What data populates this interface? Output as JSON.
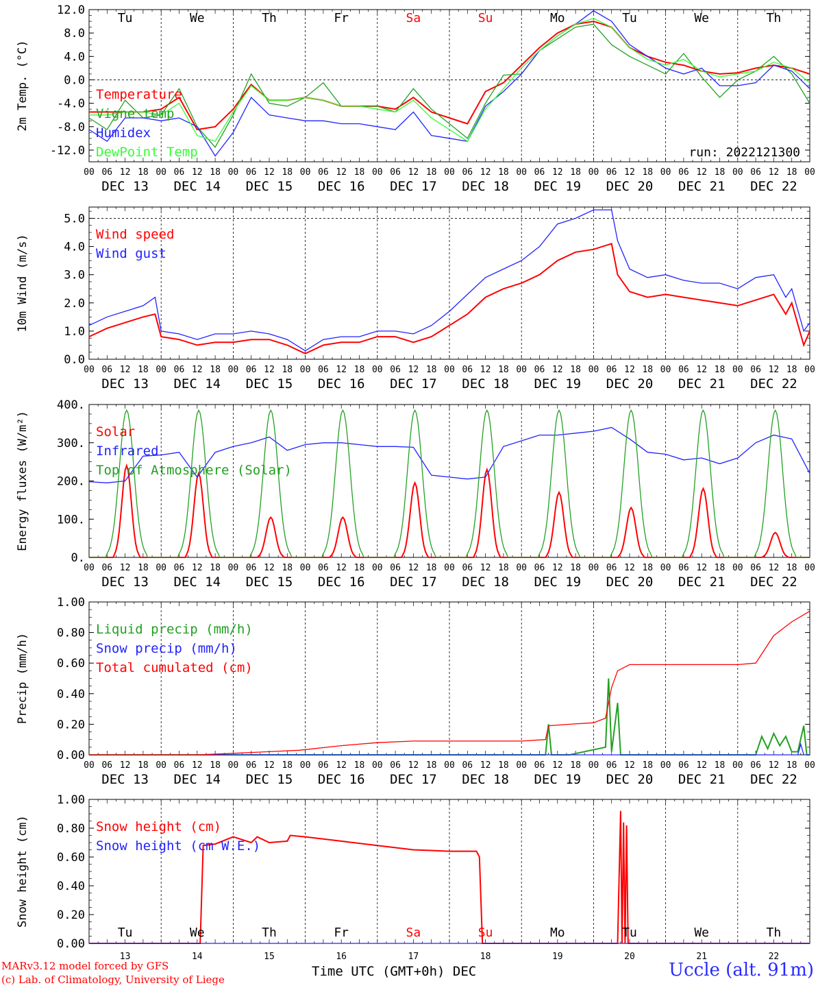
{
  "chart_data": [
    {
      "type": "line",
      "ylabel": "2m Temp. (°C)",
      "ylim": [
        -14,
        12
      ],
      "yticks": [
        "12.0",
        "8.0",
        "4.0",
        "0.0",
        "-4.0",
        "-8.0",
        "-12.0"
      ],
      "ytick_values": [
        12,
        8,
        4,
        0,
        -4,
        -8,
        -12
      ],
      "zero_line": 0,
      "annotation": "run: 2022121300",
      "series": [
        {
          "name": "Temperature",
          "color": "#ff0000",
          "x": [
            0,
            6,
            12,
            18,
            24,
            30,
            36,
            42,
            48,
            54,
            60,
            66,
            72,
            78,
            84,
            90,
            96,
            102,
            108,
            114,
            120,
            126,
            132,
            138,
            144,
            150,
            156,
            162,
            168,
            174,
            180,
            186,
            192,
            198,
            204,
            210,
            216,
            222,
            228,
            234,
            240
          ],
          "values": [
            -5.5,
            -5.5,
            -5.5,
            -5.5,
            -5.0,
            -3.0,
            -8.5,
            -8.0,
            -5.0,
            -0.8,
            -3.5,
            -3.5,
            -3.0,
            -3.5,
            -4.5,
            -4.5,
            -4.5,
            -5.0,
            -3.0,
            -5.5,
            -6.5,
            -7.5,
            -2.0,
            -0.5,
            2.5,
            5.5,
            8.0,
            9.5,
            10.0,
            9.0,
            5.5,
            4.0,
            3.0,
            2.5,
            1.5,
            1.0,
            1.2,
            2.0,
            2.5,
            2.0,
            1.0
          ]
        },
        {
          "name": "Vigne temp",
          "color": "#22a022",
          "x": [
            0,
            6,
            12,
            18,
            24,
            30,
            36,
            42,
            48,
            54,
            60,
            66,
            72,
            78,
            84,
            90,
            96,
            102,
            108,
            114,
            120,
            126,
            132,
            138,
            144,
            150,
            156,
            162,
            168,
            174,
            180,
            186,
            192,
            198,
            204,
            210,
            216,
            222,
            228,
            234,
            240
          ],
          "values": [
            -6.5,
            -8.5,
            -3.5,
            -6.5,
            -6.0,
            -1.5,
            -8.0,
            -11.5,
            -6.0,
            1.0,
            -4.0,
            -4.5,
            -3.0,
            -0.5,
            -4.5,
            -4.5,
            -4.5,
            -5.5,
            -1.5,
            -5.0,
            -7.5,
            -10.0,
            -4.0,
            0.8,
            1.0,
            5.0,
            7.0,
            9.0,
            9.5,
            6.0,
            4.0,
            2.5,
            1.0,
            4.5,
            0.5,
            -3.0,
            0.0,
            1.5,
            4.0,
            1.0,
            -4.0
          ]
        },
        {
          "name": "Humidex",
          "color": "#2222ff",
          "x": [
            0,
            6,
            12,
            18,
            24,
            30,
            36,
            42,
            48,
            54,
            60,
            66,
            72,
            78,
            84,
            90,
            96,
            102,
            108,
            114,
            120,
            126,
            132,
            138,
            144,
            150,
            156,
            162,
            168,
            174,
            180,
            186,
            192,
            198,
            204,
            210,
            216,
            222,
            228,
            234,
            240
          ],
          "values": [
            -8.5,
            -10.5,
            -6.5,
            -6.5,
            -7.0,
            -6.5,
            -8.0,
            -13.0,
            -9.0,
            -3.0,
            -6.0,
            -6.5,
            -7.0,
            -7.0,
            -7.5,
            -7.5,
            -8.0,
            -8.5,
            -5.5,
            -9.5,
            -10.0,
            -10.5,
            -4.5,
            -2.0,
            1.0,
            5.0,
            7.5,
            9.5,
            11.8,
            10.0,
            6.0,
            4.0,
            2.0,
            1.0,
            2.0,
            -1.0,
            -1.0,
            -0.5,
            2.5,
            1.5,
            -1.5
          ]
        },
        {
          "name": "DewPoint Temp",
          "color": "#33ff33",
          "x": [
            0,
            6,
            12,
            18,
            24,
            30,
            36,
            42,
            48,
            54,
            60,
            66,
            72,
            78,
            84,
            90,
            96,
            102,
            108,
            114,
            120,
            126,
            132,
            138,
            144,
            150,
            156,
            162,
            168,
            174,
            180,
            186,
            192,
            198,
            204,
            210,
            216,
            222,
            228,
            234,
            240
          ],
          "values": [
            -6.0,
            -6.0,
            -5.5,
            -5.5,
            -6.0,
            -4.0,
            -9.5,
            -10.5,
            -5.5,
            -1.0,
            -3.5,
            -3.5,
            -3.0,
            -3.5,
            -4.5,
            -4.5,
            -5.0,
            -5.5,
            -3.5,
            -6.5,
            -8.5,
            -10.5,
            -5.0,
            -1.5,
            2.0,
            5.0,
            7.5,
            9.5,
            10.5,
            9.0,
            5.5,
            3.5,
            2.5,
            3.5,
            1.5,
            0.5,
            1.0,
            1.5,
            3.0,
            2.0,
            -0.5
          ]
        }
      ]
    },
    {
      "type": "line",
      "ylabel": "10m Wind (m/s)",
      "ylim": [
        0,
        5.4
      ],
      "yticks": [
        "5.0",
        "4.0",
        "3.0",
        "2.0",
        "1.0",
        "0.0"
      ],
      "ytick_values": [
        5,
        4,
        3,
        2,
        1,
        0
      ],
      "dashed_line": 5.0,
      "series": [
        {
          "name": "Wind speed",
          "color": "#ff0000",
          "x": [
            0,
            6,
            12,
            18,
            22,
            24,
            30,
            36,
            42,
            48,
            54,
            60,
            66,
            72,
            78,
            84,
            90,
            96,
            102,
            108,
            114,
            120,
            126,
            132,
            138,
            144,
            150,
            156,
            162,
            168,
            174,
            176,
            180,
            186,
            192,
            198,
            204,
            210,
            216,
            222,
            228,
            232,
            234,
            238,
            240
          ],
          "values": [
            0.8,
            1.1,
            1.3,
            1.5,
            1.6,
            0.8,
            0.7,
            0.5,
            0.6,
            0.6,
            0.7,
            0.7,
            0.5,
            0.2,
            0.5,
            0.6,
            0.6,
            0.8,
            0.8,
            0.6,
            0.8,
            1.2,
            1.6,
            2.2,
            2.5,
            2.7,
            3.0,
            3.5,
            3.8,
            3.9,
            4.1,
            3.0,
            2.4,
            2.2,
            2.3,
            2.2,
            2.1,
            2.0,
            1.9,
            2.1,
            2.3,
            1.6,
            2.0,
            0.5,
            1.0
          ]
        },
        {
          "name": "Wind gust",
          "color": "#2222ff",
          "x": [
            0,
            6,
            12,
            18,
            22,
            24,
            30,
            36,
            42,
            48,
            54,
            60,
            66,
            72,
            78,
            84,
            90,
            96,
            102,
            108,
            114,
            120,
            126,
            132,
            138,
            144,
            150,
            156,
            162,
            168,
            174,
            176,
            180,
            186,
            192,
            198,
            204,
            210,
            216,
            222,
            228,
            232,
            234,
            238,
            240
          ],
          "values": [
            1.2,
            1.5,
            1.7,
            1.9,
            2.2,
            1.0,
            0.9,
            0.7,
            0.9,
            0.9,
            1.0,
            0.9,
            0.7,
            0.3,
            0.7,
            0.8,
            0.8,
            1.0,
            1.0,
            0.9,
            1.2,
            1.7,
            2.3,
            2.9,
            3.2,
            3.5,
            4.0,
            4.8,
            5.0,
            5.3,
            5.3,
            4.2,
            3.2,
            2.9,
            3.0,
            2.8,
            2.7,
            2.7,
            2.5,
            2.9,
            3.0,
            2.2,
            2.5,
            1.0,
            1.3
          ]
        }
      ]
    },
    {
      "type": "line",
      "ylabel": "Energy fluxes (W/m²)",
      "ylim": [
        0,
        400
      ],
      "yticks": [
        "400.",
        "300.",
        "200.",
        "100.",
        "0."
      ],
      "ytick_values": [
        400,
        300,
        200,
        100,
        0
      ],
      "series": [
        {
          "name": "Solar",
          "color": "#ff0000",
          "peak_days": [
            0,
            1,
            2,
            3,
            4,
            5,
            6,
            7,
            8,
            9
          ],
          "peaks": [
            240,
            220,
            105,
            105,
            195,
            230,
            170,
            130,
            180,
            65
          ]
        },
        {
          "name": "Infrared",
          "color": "#2222ff",
          "x": [
            0,
            6,
            12,
            18,
            24,
            30,
            36,
            42,
            48,
            54,
            60,
            66,
            72,
            78,
            84,
            90,
            96,
            102,
            108,
            114,
            120,
            126,
            132,
            138,
            144,
            150,
            156,
            162,
            168,
            174,
            180,
            186,
            192,
            198,
            204,
            210,
            216,
            222,
            228,
            234,
            240
          ],
          "values": [
            198,
            195,
            200,
            265,
            268,
            275,
            210,
            275,
            290,
            300,
            315,
            280,
            295,
            300,
            300,
            295,
            290,
            290,
            288,
            215,
            210,
            205,
            210,
            290,
            305,
            320,
            320,
            325,
            330,
            340,
            310,
            275,
            270,
            255,
            260,
            245,
            260,
            300,
            320,
            310,
            220
          ]
        },
        {
          "name": "Top of Atmosphere (Solar)",
          "color": "#22a022",
          "peak_days": [
            0,
            1,
            2,
            3,
            4,
            5,
            6,
            7,
            8,
            9
          ],
          "peaks": [
            385,
            385,
            385,
            385,
            385,
            385,
            385,
            385,
            385,
            385
          ]
        }
      ]
    },
    {
      "type": "line",
      "ylabel": "Precip (mm/h)",
      "ylim": [
        0,
        1.0
      ],
      "yticks": [
        "1.00",
        "0.80",
        "0.60",
        "0.40",
        "0.20",
        "0.00"
      ],
      "ytick_values": [
        1.0,
        0.8,
        0.6,
        0.4,
        0.2,
        0.0
      ],
      "series": [
        {
          "name": "Liquid precip (mm/h)",
          "color": "#22a022",
          "x": [
            0,
            152,
            153,
            154,
            160,
            172,
            173,
            174,
            176,
            177,
            178,
            180,
            222,
            224,
            226,
            228,
            230,
            232,
            234,
            236,
            238,
            239,
            240
          ],
          "values": [
            0,
            0,
            0.2,
            0,
            0,
            0.05,
            0.5,
            0.02,
            0.34,
            0.0,
            0,
            0,
            0,
            0.12,
            0.04,
            0.14,
            0.06,
            0.12,
            0.02,
            0.02,
            0.19,
            0,
            0
          ]
        },
        {
          "name": "Snow precip (mm/h)",
          "color": "#2222ff",
          "x": [
            0,
            236,
            237,
            238,
            240
          ],
          "values": [
            0,
            0,
            0.07,
            0,
            0
          ]
        },
        {
          "name": "Total cumulated (cm)",
          "color": "#ff0000",
          "x": [
            0,
            36,
            48,
            70,
            84,
            96,
            108,
            120,
            132,
            144,
            152,
            153,
            160,
            168,
            172,
            174,
            176,
            180,
            192,
            204,
            216,
            222,
            228,
            234,
            240
          ],
          "values": [
            0,
            0,
            0.01,
            0.03,
            0.06,
            0.08,
            0.09,
            0.09,
            0.09,
            0.09,
            0.1,
            0.19,
            0.2,
            0.21,
            0.24,
            0.44,
            0.55,
            0.59,
            0.59,
            0.59,
            0.59,
            0.6,
            0.78,
            0.87,
            0.94
          ]
        }
      ]
    },
    {
      "type": "line",
      "ylabel": "Snow height (cm)",
      "ylim": [
        0,
        1.0
      ],
      "yticks": [
        "1.00",
        "0.80",
        "0.60",
        "0.40",
        "0.20",
        "0.00"
      ],
      "ytick_values": [
        1.0,
        0.8,
        0.6,
        0.4,
        0.2,
        0.0
      ],
      "series": [
        {
          "name": "Snow height (cm)",
          "color": "#ff0000",
          "x": [
            0,
            37,
            38,
            42,
            48,
            54,
            56,
            60,
            66,
            67,
            72,
            84,
            96,
            108,
            120,
            129,
            130,
            131,
            176,
            177,
            177.5,
            178,
            178.5,
            179,
            179.5,
            180,
            240
          ],
          "values": [
            0,
            0,
            0.68,
            0.69,
            0.74,
            0.7,
            0.74,
            0.7,
            0.71,
            0.75,
            0.74,
            0.71,
            0.68,
            0.65,
            0.64,
            0.64,
            0.6,
            0,
            0,
            0.92,
            0,
            0.84,
            0,
            0.82,
            0,
            0,
            0
          ]
        },
        {
          "name": "Snow height (cm W.E.)",
          "color": "#2222ff",
          "x": [
            0,
            240
          ],
          "values": [
            0,
            0
          ]
        }
      ]
    }
  ],
  "hour_ticks": [
    "00",
    "06",
    "12",
    "18"
  ],
  "end_tick": "00",
  "dates": [
    "DEC 13",
    "DEC 14",
    "DEC 15",
    "DEC 16",
    "DEC 17",
    "DEC 18",
    "DEC 19",
    "DEC 20",
    "DEC 21",
    "DEC 22"
  ],
  "weekdays": [
    {
      "label": "Tu",
      "weekend": false
    },
    {
      "label": "We",
      "weekend": false
    },
    {
      "label": "Th",
      "weekend": false
    },
    {
      "label": "Fr",
      "weekend": false
    },
    {
      "label": "Sa",
      "weekend": true
    },
    {
      "label": "Su",
      "weekend": true
    },
    {
      "label": "Mo",
      "weekend": false
    },
    {
      "label": "Tu",
      "weekend": false
    },
    {
      "label": "We",
      "weekend": false
    },
    {
      "label": "Th",
      "weekend": false
    }
  ],
  "day_numbers": [
    "13",
    "14",
    "15",
    "16",
    "17",
    "18",
    "19",
    "20",
    "21",
    "22"
  ],
  "xaxis_title": "Time UTC (GMT+0h) DEC",
  "credits": [
    "MARv3.12 model forced by GFS",
    "(c) Lab. of Climatology, University of Liege"
  ],
  "station": "Uccle (alt. 91m)",
  "colors": {
    "weekday": "#000000",
    "weekend": "#ff0000",
    "frame": "#000000"
  }
}
